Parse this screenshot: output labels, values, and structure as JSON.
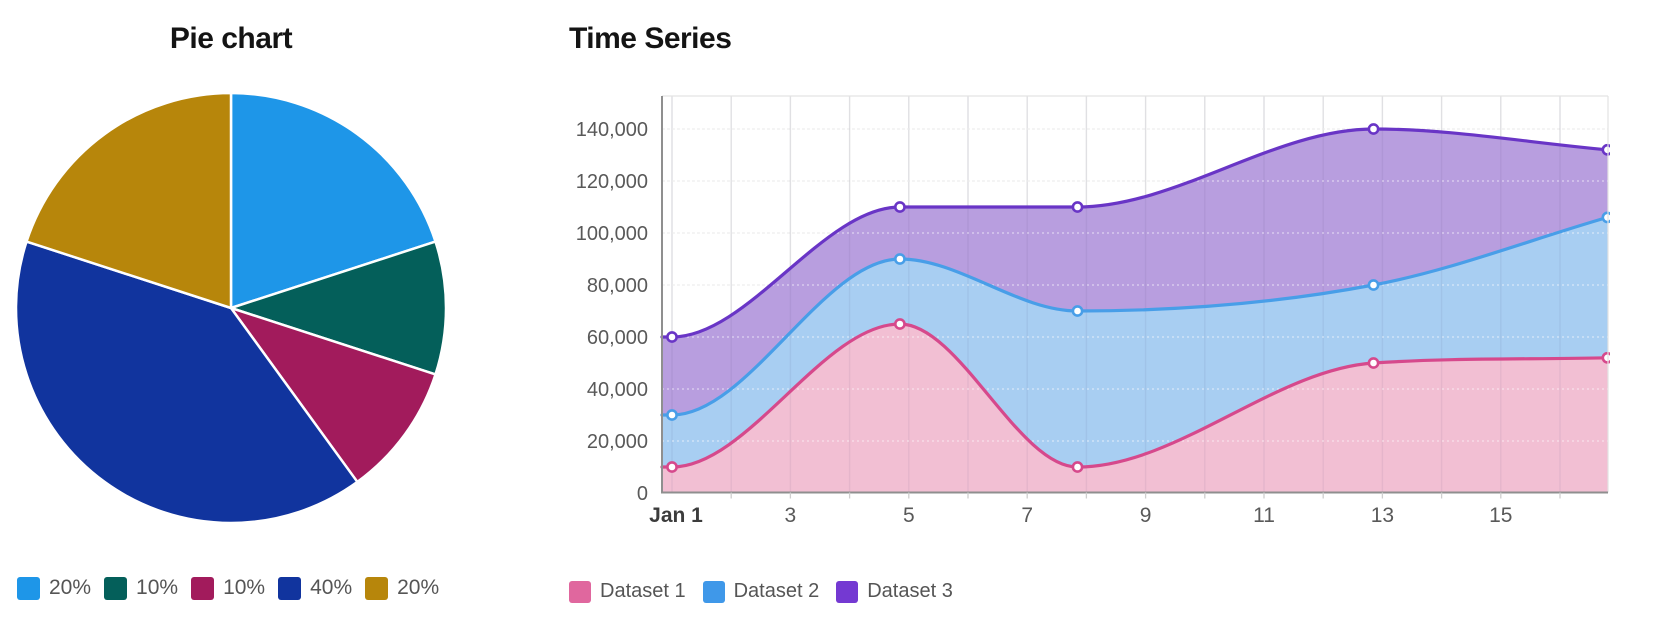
{
  "pie_chart": {
    "title": "Pie chart",
    "legend": [
      {
        "label": "20%",
        "color": "#1E96E8"
      },
      {
        "label": "10%",
        "color": "#045F5A"
      },
      {
        "label": "10%",
        "color": "#A21B5C"
      },
      {
        "label": "40%",
        "color": "#11349E"
      },
      {
        "label": "20%",
        "color": "#B7860B"
      }
    ]
  },
  "time_series": {
    "title": "Time Series",
    "legend": [
      {
        "label": "Dataset 1",
        "color": "#E0679E"
      },
      {
        "label": "Dataset 2",
        "color": "#3F98E9"
      },
      {
        "label": "Dataset 3",
        "color": "#7439D2"
      }
    ]
  },
  "chart_data": [
    {
      "type": "pie",
      "title": "Pie chart",
      "direction": "clockwise",
      "start_angle_deg": 0,
      "legend_position": "bottom",
      "slices": [
        {
          "label": "20%",
          "value": 20,
          "color": "#1E96E8"
        },
        {
          "label": "10%",
          "value": 10,
          "color": "#045F5A"
        },
        {
          "label": "10%",
          "value": 10,
          "color": "#A21B5C"
        },
        {
          "label": "40%",
          "value": 40,
          "color": "#11349E"
        },
        {
          "label": "20%",
          "value": 20,
          "color": "#B7860B"
        }
      ]
    },
    {
      "type": "area",
      "title": "Time Series",
      "x_days": [
        1,
        4.85,
        7.85,
        12.85,
        16.8
      ],
      "x_tick_days": [
        1,
        3,
        5,
        7,
        9,
        11,
        13,
        15
      ],
      "x_tick_labels": [
        "Jan 1",
        "3",
        "5",
        "7",
        "9",
        "11",
        "13",
        "15"
      ],
      "y_ticks": [
        0,
        20000,
        40000,
        60000,
        80000,
        100000,
        120000,
        140000
      ],
      "y_tick_labels": [
        "0",
        "20,000",
        "40,000",
        "60,000",
        "80,000",
        "100,000",
        "120,000",
        "140,000"
      ],
      "ylim": [
        0,
        152000
      ],
      "grid": true,
      "legend_position": "bottom",
      "series": [
        {
          "name": "Dataset 1",
          "line_color": "#D6498C",
          "fill_color": "#F2BFD3",
          "values": [
            10000,
            65000,
            10000,
            50000,
            52000
          ]
        },
        {
          "name": "Dataset 2",
          "line_color": "#489EE8",
          "fill_color": "#A8CEF2",
          "values": [
            30000,
            90000,
            70000,
            80000,
            106000
          ]
        },
        {
          "name": "Dataset 3",
          "line_color": "#6935C6",
          "fill_color": "#B89EDF",
          "values": [
            60000,
            110000,
            110000,
            140000,
            132000
          ]
        }
      ]
    }
  ]
}
